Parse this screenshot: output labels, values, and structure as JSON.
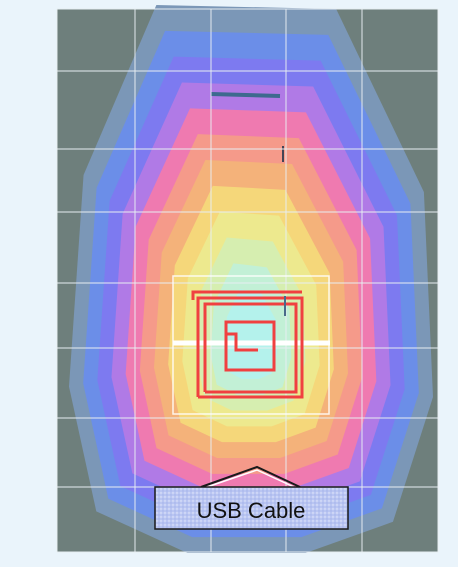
{
  "callout": {
    "label": "USB Cable"
  },
  "colors": {
    "page_background": "#eaf4fb",
    "plot_background": "#6e7f7c",
    "grid_lines": "#e8eef2",
    "device_outline": "#f04040",
    "cable_line": "#ffffff",
    "callout_fill": "#b9c5f2",
    "callout_border": "#1a1a1a"
  },
  "heatmap": {
    "contour_colors": [
      "#7b97b7",
      "#6b8ee8",
      "#7d7af0",
      "#b07ae6",
      "#ef7ab0",
      "#f59a8a",
      "#f4b27a",
      "#f5d77a",
      "#ede98e",
      "#d6eeb0",
      "#c2f0d6",
      "#b4f2ec"
    ]
  }
}
